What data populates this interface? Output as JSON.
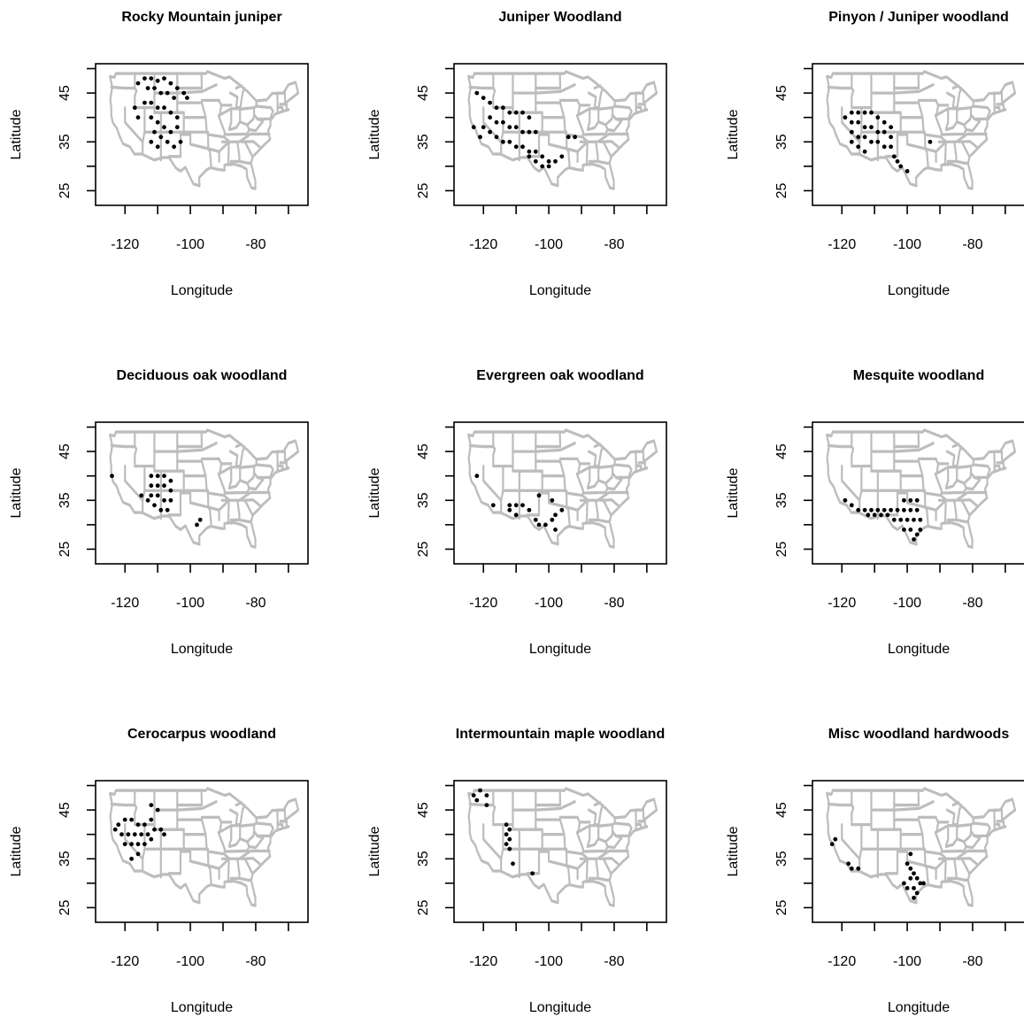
{
  "colors": {
    "map": "#bdbdbd",
    "points": "#000000",
    "axes": "#000000"
  },
  "chart_data": [
    {
      "type": "scatter",
      "title": "Rocky Mountain juniper",
      "xlabel": "Longitude",
      "ylabel": "Latitude",
      "xlim": [
        -129,
        -64
      ],
      "ylim": [
        22,
        51
      ],
      "xticks": [
        -120,
        -100,
        -80
      ],
      "yticks": [
        25,
        35,
        45
      ],
      "extra_xticks": [
        -130,
        -110,
        -90,
        -70
      ],
      "grid": false,
      "basemap": "contiguous-us-states",
      "points": [
        [
          -116,
          47
        ],
        [
          -114,
          48
        ],
        [
          -112,
          48
        ],
        [
          -110,
          47.5
        ],
        [
          -108,
          48
        ],
        [
          -106,
          47
        ],
        [
          -104,
          46
        ],
        [
          -113,
          46
        ],
        [
          -111,
          46
        ],
        [
          -109,
          45
        ],
        [
          -107,
          45
        ],
        [
          -105,
          44
        ],
        [
          -114,
          43
        ],
        [
          -112,
          43
        ],
        [
          -110,
          42
        ],
        [
          -108,
          42
        ],
        [
          -106,
          41
        ],
        [
          -104,
          40
        ],
        [
          -112,
          40
        ],
        [
          -110,
          39
        ],
        [
          -108,
          38
        ],
        [
          -106,
          37
        ],
        [
          -104,
          38
        ],
        [
          -111,
          37
        ],
        [
          -109,
          36
        ],
        [
          -107,
          35
        ],
        [
          -105,
          34
        ],
        [
          -112,
          35
        ],
        [
          -110,
          34
        ],
        [
          -103,
          35
        ],
        [
          -117,
          42
        ],
        [
          -116,
          40
        ],
        [
          -102,
          45
        ],
        [
          -101,
          44
        ]
      ]
    },
    {
      "type": "scatter",
      "title": "Juniper Woodland",
      "xlabel": "Longitude",
      "ylabel": "Latitude",
      "xlim": [
        -129,
        -64
      ],
      "ylim": [
        22,
        51
      ],
      "xticks": [
        -120,
        -100,
        -80
      ],
      "yticks": [
        25,
        35,
        45
      ],
      "extra_xticks": [
        -130,
        -110,
        -90,
        -70
      ],
      "grid": false,
      "basemap": "contiguous-us-states",
      "points": [
        [
          -122,
          45
        ],
        [
          -120,
          44
        ],
        [
          -118,
          43
        ],
        [
          -116,
          42
        ],
        [
          -114,
          42
        ],
        [
          -112,
          41
        ],
        [
          -110,
          41
        ],
        [
          -108,
          41
        ],
        [
          -106,
          40
        ],
        [
          -118,
          40
        ],
        [
          -116,
          39
        ],
        [
          -114,
          39
        ],
        [
          -112,
          38
        ],
        [
          -110,
          38
        ],
        [
          -108,
          37
        ],
        [
          -106,
          37
        ],
        [
          -104,
          37
        ],
        [
          -120,
          38
        ],
        [
          -118,
          37
        ],
        [
          -116,
          36
        ],
        [
          -114,
          35
        ],
        [
          -112,
          35
        ],
        [
          -110,
          34
        ],
        [
          -108,
          34
        ],
        [
          -106,
          33
        ],
        [
          -104,
          33
        ],
        [
          -102,
          32
        ],
        [
          -100,
          31
        ],
        [
          -98,
          31
        ],
        [
          -100,
          30
        ],
        [
          -102,
          30
        ],
        [
          -104,
          31
        ],
        [
          -106,
          32
        ],
        [
          -96,
          32
        ],
        [
          -94,
          36
        ],
        [
          -92,
          36
        ],
        [
          -123,
          38
        ],
        [
          -121,
          36
        ]
      ]
    },
    {
      "type": "scatter",
      "title": "Pinyon / Juniper woodland",
      "xlabel": "Longitude",
      "ylabel": "Latitude",
      "xlim": [
        -129,
        -64
      ],
      "ylim": [
        22,
        51
      ],
      "xticks": [
        -120,
        -100,
        -80
      ],
      "yticks": [
        25,
        35,
        45
      ],
      "extra_xticks": [
        -130,
        -110,
        -90,
        -70
      ],
      "grid": false,
      "basemap": "contiguous-us-states",
      "points": [
        [
          -119,
          40
        ],
        [
          -117,
          41
        ],
        [
          -115,
          41
        ],
        [
          -113,
          41
        ],
        [
          -111,
          41
        ],
        [
          -109,
          40
        ],
        [
          -107,
          39
        ],
        [
          -105,
          38
        ],
        [
          -117,
          39
        ],
        [
          -115,
          39
        ],
        [
          -113,
          38
        ],
        [
          -111,
          38
        ],
        [
          -109,
          37
        ],
        [
          -107,
          37
        ],
        [
          -105,
          36
        ],
        [
          -117,
          37
        ],
        [
          -115,
          36
        ],
        [
          -113,
          36
        ],
        [
          -111,
          35
        ],
        [
          -109,
          35
        ],
        [
          -107,
          34
        ],
        [
          -105,
          34
        ],
        [
          -117,
          35
        ],
        [
          -115,
          34
        ],
        [
          -113,
          33
        ],
        [
          -104,
          32
        ],
        [
          -103,
          31
        ],
        [
          -102,
          30
        ],
        [
          -100,
          29
        ],
        [
          -93,
          35
        ]
      ]
    },
    {
      "type": "scatter",
      "title": "Deciduous oak woodland",
      "xlabel": "Longitude",
      "ylabel": "Latitude",
      "xlim": [
        -129,
        -64
      ],
      "ylim": [
        22,
        51
      ],
      "xticks": [
        -120,
        -100,
        -80
      ],
      "yticks": [
        25,
        35,
        45
      ],
      "extra_xticks": [
        -130,
        -110,
        -90,
        -70
      ],
      "grid": false,
      "basemap": "contiguous-us-states",
      "points": [
        [
          -112,
          40
        ],
        [
          -110,
          40
        ],
        [
          -108,
          40
        ],
        [
          -106,
          39
        ],
        [
          -112,
          38
        ],
        [
          -110,
          38
        ],
        [
          -108,
          38
        ],
        [
          -106,
          37
        ],
        [
          -112,
          36
        ],
        [
          -110,
          36
        ],
        [
          -108,
          35
        ],
        [
          -106,
          35
        ],
        [
          -111,
          34
        ],
        [
          -109,
          33
        ],
        [
          -107,
          33
        ],
        [
          -113,
          35
        ],
        [
          -115,
          36
        ],
        [
          -124,
          40
        ],
        [
          -97,
          31
        ],
        [
          -98,
          30
        ]
      ]
    },
    {
      "type": "scatter",
      "title": "Evergreen oak woodland",
      "xlabel": "Longitude",
      "ylabel": "Latitude",
      "xlim": [
        -129,
        -64
      ],
      "ylim": [
        22,
        51
      ],
      "xticks": [
        -120,
        -100,
        -80
      ],
      "yticks": [
        25,
        35,
        45
      ],
      "extra_xticks": [
        -130,
        -110,
        -90,
        -70
      ],
      "grid": false,
      "basemap": "contiguous-us-states",
      "points": [
        [
          -112,
          34
        ],
        [
          -110,
          34
        ],
        [
          -108,
          34
        ],
        [
          -106,
          33
        ],
        [
          -112,
          33
        ],
        [
          -110,
          32
        ],
        [
          -104,
          31
        ],
        [
          -103,
          30
        ],
        [
          -101,
          30
        ],
        [
          -99,
          31
        ],
        [
          -98,
          32
        ],
        [
          -96,
          33
        ],
        [
          -99,
          35
        ],
        [
          -103,
          36
        ],
        [
          -117,
          34
        ],
        [
          -122,
          40
        ],
        [
          -98,
          29
        ]
      ]
    },
    {
      "type": "scatter",
      "title": "Mesquite woodland",
      "xlabel": "Longitude",
      "ylabel": "Latitude",
      "xlim": [
        -129,
        -64
      ],
      "ylim": [
        22,
        51
      ],
      "xticks": [
        -120,
        -100,
        -80
      ],
      "yticks": [
        25,
        35,
        45
      ],
      "extra_xticks": [
        -130,
        -110,
        -90,
        -70
      ],
      "grid": false,
      "basemap": "contiguous-us-states",
      "points": [
        [
          -117,
          34
        ],
        [
          -115,
          33
        ],
        [
          -113,
          33
        ],
        [
          -111,
          33
        ],
        [
          -109,
          33
        ],
        [
          -107,
          33
        ],
        [
          -105,
          33
        ],
        [
          -103,
          33
        ],
        [
          -101,
          33
        ],
        [
          -99,
          33
        ],
        [
          -97,
          33
        ],
        [
          -112,
          32
        ],
        [
          -110,
          32
        ],
        [
          -108,
          32
        ],
        [
          -106,
          32
        ],
        [
          -104,
          31
        ],
        [
          -102,
          31
        ],
        [
          -100,
          31
        ],
        [
          -98,
          31
        ],
        [
          -96,
          31
        ],
        [
          -101,
          35
        ],
        [
          -99,
          35
        ],
        [
          -97,
          35
        ],
        [
          -101,
          29
        ],
        [
          -99,
          29
        ],
        [
          -97,
          28
        ],
        [
          -98,
          27
        ],
        [
          -96,
          29
        ],
        [
          -119,
          35
        ]
      ]
    },
    {
      "type": "scatter",
      "title": "Cerocarpus woodland",
      "xlabel": "Longitude",
      "ylabel": "Latitude",
      "xlim": [
        -129,
        -64
      ],
      "ylim": [
        22,
        51
      ],
      "xticks": [
        -120,
        -100,
        -80
      ],
      "yticks": [
        25,
        35,
        45
      ],
      "extra_xticks": [
        -130,
        -110,
        -90,
        -70
      ],
      "grid": false,
      "basemap": "contiguous-us-states",
      "points": [
        [
          -122,
          42
        ],
        [
          -120,
          43
        ],
        [
          -118,
          43
        ],
        [
          -116,
          42
        ],
        [
          -114,
          42
        ],
        [
          -112,
          43
        ],
        [
          -110,
          45
        ],
        [
          -112,
          46
        ],
        [
          -121,
          40
        ],
        [
          -119,
          40
        ],
        [
          -117,
          40
        ],
        [
          -115,
          40
        ],
        [
          -113,
          40
        ],
        [
          -111,
          41
        ],
        [
          -109,
          41
        ],
        [
          -120,
          38
        ],
        [
          -118,
          38
        ],
        [
          -116,
          38
        ],
        [
          -114,
          38
        ],
        [
          -112,
          39
        ],
        [
          -116,
          36
        ],
        [
          -118,
          35
        ],
        [
          -123,
          41
        ],
        [
          -108,
          40
        ]
      ]
    },
    {
      "type": "scatter",
      "title": "Intermountain maple woodland",
      "xlabel": "Longitude",
      "ylabel": "Latitude",
      "xlim": [
        -129,
        -64
      ],
      "ylim": [
        22,
        51
      ],
      "xticks": [
        -120,
        -100,
        -80
      ],
      "yticks": [
        25,
        35,
        45
      ],
      "extra_xticks": [
        -130,
        -110,
        -90,
        -70
      ],
      "grid": false,
      "basemap": "contiguous-us-states",
      "points": [
        [
          -123,
          48
        ],
        [
          -121,
          49
        ],
        [
          -119,
          48
        ],
        [
          -122,
          47
        ],
        [
          -119,
          46
        ],
        [
          -113,
          42
        ],
        [
          -112,
          41
        ],
        [
          -113,
          40
        ],
        [
          -112,
          39
        ],
        [
          -113,
          38
        ],
        [
          -112,
          37
        ],
        [
          -111,
          34
        ],
        [
          -105,
          32
        ]
      ]
    },
    {
      "type": "scatter",
      "title": "Misc woodland hardwoods",
      "xlabel": "Longitude",
      "ylabel": "Latitude",
      "xlim": [
        -129,
        -64
      ],
      "ylim": [
        22,
        51
      ],
      "xticks": [
        -120,
        -100,
        -80
      ],
      "yticks": [
        25,
        35,
        45
      ],
      "extra_xticks": [
        -130,
        -110,
        -90,
        -70
      ],
      "grid": false,
      "basemap": "contiguous-us-states",
      "points": [
        [
          -123,
          38
        ],
        [
          -122,
          39
        ],
        [
          -118,
          34
        ],
        [
          -117,
          33
        ],
        [
          -115,
          33
        ],
        [
          -100,
          34
        ],
        [
          -99,
          33
        ],
        [
          -98,
          32
        ],
        [
          -97,
          31
        ],
        [
          -99,
          31
        ],
        [
          -101,
          30
        ],
        [
          -100,
          29
        ],
        [
          -98,
          29
        ],
        [
          -97,
          28
        ],
        [
          -98,
          27
        ],
        [
          -96,
          30
        ],
        [
          -95,
          30
        ],
        [
          -99,
          36
        ]
      ]
    }
  ]
}
